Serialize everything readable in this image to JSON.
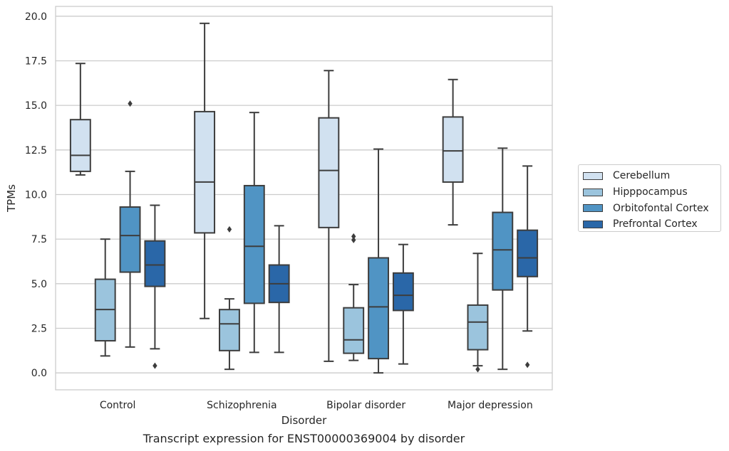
{
  "chart_data": {
    "type": "boxplot",
    "title": "Transcript expression for ENST00000369004 by disorder",
    "xlabel": "Disorder",
    "ylabel": "TPMs",
    "ylim": [
      -0.95,
      20.55
    ],
    "yticks": [
      "0.0",
      "2.5",
      "5.0",
      "7.5",
      "10.0",
      "12.5",
      "15.0",
      "17.5",
      "20.0"
    ],
    "ytick_values": [
      0,
      2.5,
      5,
      7.5,
      10,
      12.5,
      15,
      17.5,
      20
    ],
    "grid": true,
    "legend_position": "right",
    "categories": [
      "Control",
      "Schizophrenia",
      "Bipolar disorder",
      "Major depression"
    ],
    "series": [
      {
        "name": "Cerebellum",
        "color": "#d1e1f0",
        "boxes": [
          {
            "whislo": 11.1,
            "q1": 11.3,
            "med": 12.2,
            "q3": 14.2,
            "whishi": 17.35,
            "fliers": []
          },
          {
            "whislo": 3.05,
            "q1": 7.85,
            "med": 10.7,
            "q3": 14.65,
            "whishi": 19.6,
            "fliers": []
          },
          {
            "whislo": 0.65,
            "q1": 8.15,
            "med": 11.35,
            "q3": 14.3,
            "whishi": 16.95,
            "fliers": []
          },
          {
            "whislo": 8.3,
            "q1": 10.7,
            "med": 12.45,
            "q3": 14.35,
            "whishi": 16.45,
            "fliers": []
          }
        ]
      },
      {
        "name": "Hipppocampus",
        "color": "#9bc4dd",
        "boxes": [
          {
            "whislo": 0.95,
            "q1": 1.8,
            "med": 3.55,
            "q3": 5.25,
            "whishi": 7.5,
            "fliers": []
          },
          {
            "whislo": 0.2,
            "q1": 1.25,
            "med": 2.75,
            "q3": 3.55,
            "whishi": 4.15,
            "fliers": [
              8.05
            ]
          },
          {
            "whislo": 0.7,
            "q1": 1.1,
            "med": 1.85,
            "q3": 3.65,
            "whishi": 4.95,
            "fliers": [
              7.45,
              7.65
            ]
          },
          {
            "whislo": 0.4,
            "q1": 1.3,
            "med": 2.85,
            "q3": 3.8,
            "whishi": 6.7,
            "fliers": [
              0.2
            ]
          }
        ]
      },
      {
        "name": "Orbitofontal Cortex",
        "color": "#5094c4",
        "boxes": [
          {
            "whislo": 1.45,
            "q1": 5.65,
            "med": 7.7,
            "q3": 9.3,
            "whishi": 11.3,
            "fliers": [
              15.1
            ]
          },
          {
            "whislo": 1.15,
            "q1": 3.9,
            "med": 7.1,
            "q3": 10.5,
            "whishi": 14.6,
            "fliers": []
          },
          {
            "whislo": 0.0,
            "q1": 0.8,
            "med": 3.7,
            "q3": 6.45,
            "whishi": 12.55,
            "fliers": []
          },
          {
            "whislo": 0.2,
            "q1": 4.65,
            "med": 6.9,
            "q3": 9.0,
            "whishi": 12.6,
            "fliers": []
          }
        ]
      },
      {
        "name": "Prefrontal Cortex",
        "color": "#2a67a8",
        "boxes": [
          {
            "whislo": 1.35,
            "q1": 4.85,
            "med": 6.05,
            "q3": 7.4,
            "whishi": 9.4,
            "fliers": [
              0.4
            ]
          },
          {
            "whislo": 1.15,
            "q1": 3.95,
            "med": 5.0,
            "q3": 6.05,
            "whishi": 8.25,
            "fliers": []
          },
          {
            "whislo": 0.5,
            "q1": 3.5,
            "med": 4.35,
            "q3": 5.6,
            "whishi": 7.2,
            "fliers": []
          },
          {
            "whislo": 2.35,
            "q1": 5.4,
            "med": 6.45,
            "q3": 8.0,
            "whishi": 11.6,
            "fliers": [
              0.45
            ]
          }
        ]
      }
    ]
  },
  "colors": {
    "grid": "#cccccc",
    "box_edge": "#3d3d3d",
    "text": "#262626"
  }
}
